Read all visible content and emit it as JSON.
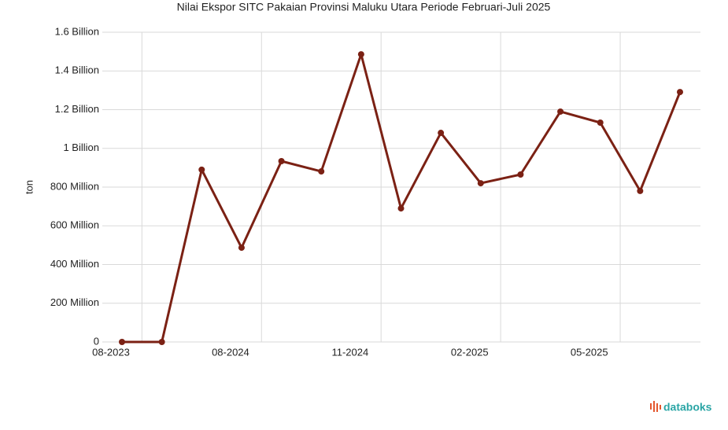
{
  "chart_data": {
    "type": "line",
    "title": "Nilai Ekspor SITC Pakaian Provinsi Maluku Utara Periode Februari-Juli 2025",
    "y_label": "ton",
    "categories": [
      "08-2023",
      null,
      null,
      "08-2024",
      null,
      null,
      "11-2024",
      null,
      null,
      "02-2025",
      null,
      null,
      "05-2025",
      null,
      null
    ],
    "series": [
      {
        "name": "ton",
        "color": "#7b2114",
        "values": [
          0,
          0,
          890000000,
          487000000,
          934000000,
          881000000,
          1486000000,
          690000000,
          1080000000,
          820000000,
          865000000,
          1190000000,
          1133000000,
          780000000,
          1291000000
        ]
      }
    ],
    "ylim": [
      0,
      1600000000
    ],
    "yticks": [
      0,
      {
        "value": 200000000,
        "label": "200 Million"
      },
      {
        "value": 400000000,
        "label": "400 Million"
      },
      {
        "value": 600000000,
        "label": "600 Million"
      },
      {
        "value": 800000000,
        "label": "800 Million"
      },
      {
        "value": 1000000000,
        "label": "1 Billion"
      },
      {
        "value": 1200000000,
        "label": "1.2 Billion"
      },
      {
        "value": 1400000000,
        "label": "1.4 Billion"
      },
      {
        "value": 1600000000,
        "label": "1.6 Billion"
      }
    ],
    "grid": true,
    "source_logo": "databoks"
  }
}
